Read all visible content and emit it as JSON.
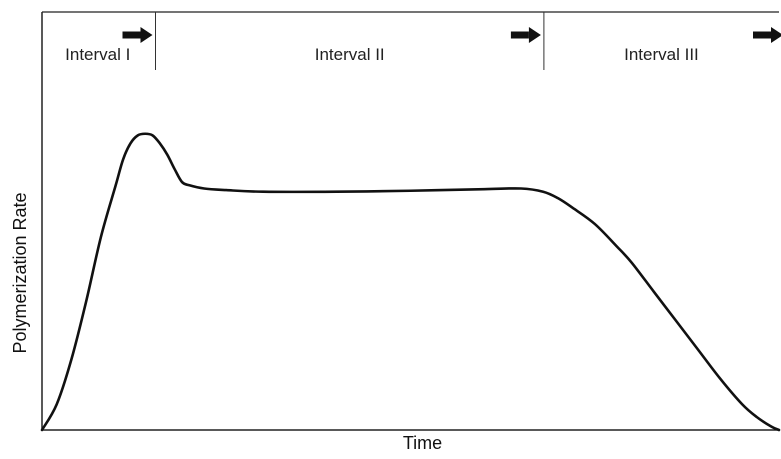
{
  "chart_data": {
    "type": "line",
    "title": "",
    "xlabel": "Time",
    "ylabel": "Polymerization Rate",
    "xlim": [
      0,
      100
    ],
    "ylim": [
      0,
      100
    ],
    "grid": false,
    "legend": "none",
    "intervals": [
      {
        "label": "Interval I",
        "start": 0,
        "end": 15.4
      },
      {
        "label": "Interval II",
        "start": 15.4,
        "end": 68.1
      },
      {
        "label": "Interval III",
        "start": 68.1,
        "end": 100
      }
    ],
    "series": [
      {
        "x": [
          0,
          2,
          4,
          6,
          8,
          10,
          11,
          12,
          13,
          14,
          15,
          16,
          17,
          18,
          19,
          20,
          22,
          25,
          30,
          40,
          50,
          60,
          65,
          68,
          70,
          72,
          75,
          78,
          80,
          83,
          86,
          89,
          92,
          95,
          97,
          99,
          100
        ],
        "y": [
          0,
          8,
          22,
          40,
          60,
          76,
          84,
          89,
          91.5,
          92,
          91.5,
          89,
          85.5,
          81,
          77,
          76,
          75,
          74.5,
          74,
          74,
          74.3,
          74.8,
          75,
          74,
          72,
          69,
          64,
          57,
          52,
          43,
          34,
          25,
          16,
          8,
          4,
          1,
          0
        ]
      }
    ],
    "colors": {
      "line": "#111111",
      "axes": "#222222",
      "divider": "#333333",
      "arrow": "#111111"
    }
  }
}
